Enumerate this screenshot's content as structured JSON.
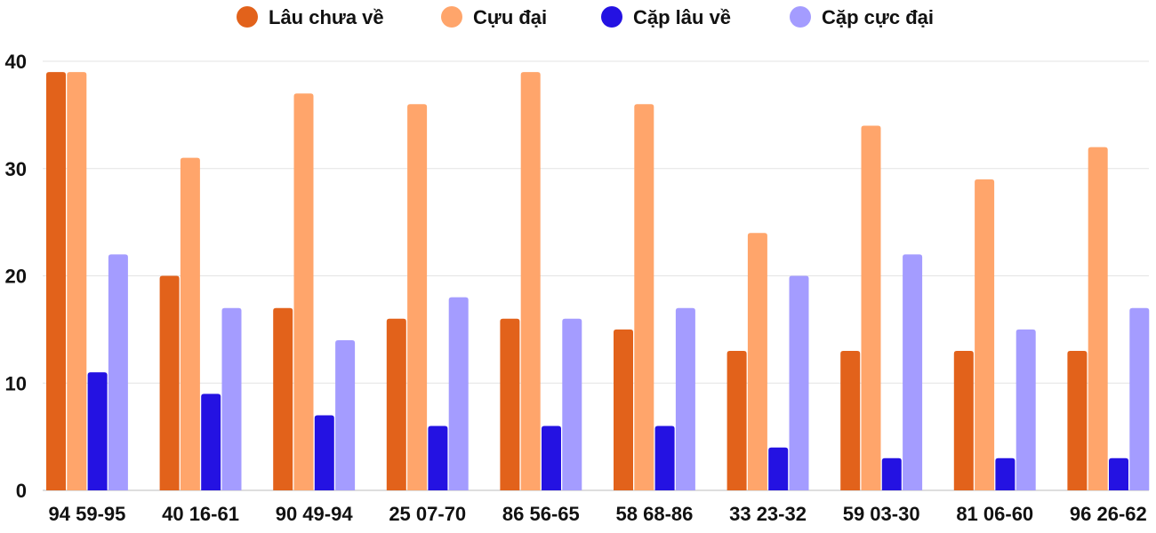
{
  "chart_data": {
    "type": "bar",
    "title": "",
    "xlabel": "",
    "ylabel": "",
    "ylim": [
      0,
      40
    ],
    "yticks": [
      0,
      10,
      20,
      30,
      40
    ],
    "grid": true,
    "legend_position": "top",
    "categories": [
      "94 59-95",
      "40 16-61",
      "90 49-94",
      "25 07-70",
      "86 56-65",
      "58 68-86",
      "33 23-32",
      "59 03-30",
      "81 06-60",
      "96 26-62"
    ],
    "series": [
      {
        "name": "Lâu chưa về",
        "color": "#e2621b",
        "values": [
          39,
          20,
          17,
          16,
          16,
          15,
          13,
          13,
          13,
          13
        ]
      },
      {
        "name": "Cựu đại",
        "color": "#ffa56b",
        "values": [
          39,
          31,
          37,
          36,
          39,
          36,
          24,
          34,
          29,
          32
        ]
      },
      {
        "name": "Cặp lâu về",
        "color": "#2412e2",
        "values": [
          11,
          9,
          7,
          6,
          6,
          6,
          4,
          3,
          3,
          3
        ]
      },
      {
        "name": "Cặp cực đại",
        "color": "#a49cff",
        "values": [
          22,
          17,
          14,
          18,
          16,
          17,
          20,
          22,
          15,
          17
        ]
      }
    ]
  }
}
